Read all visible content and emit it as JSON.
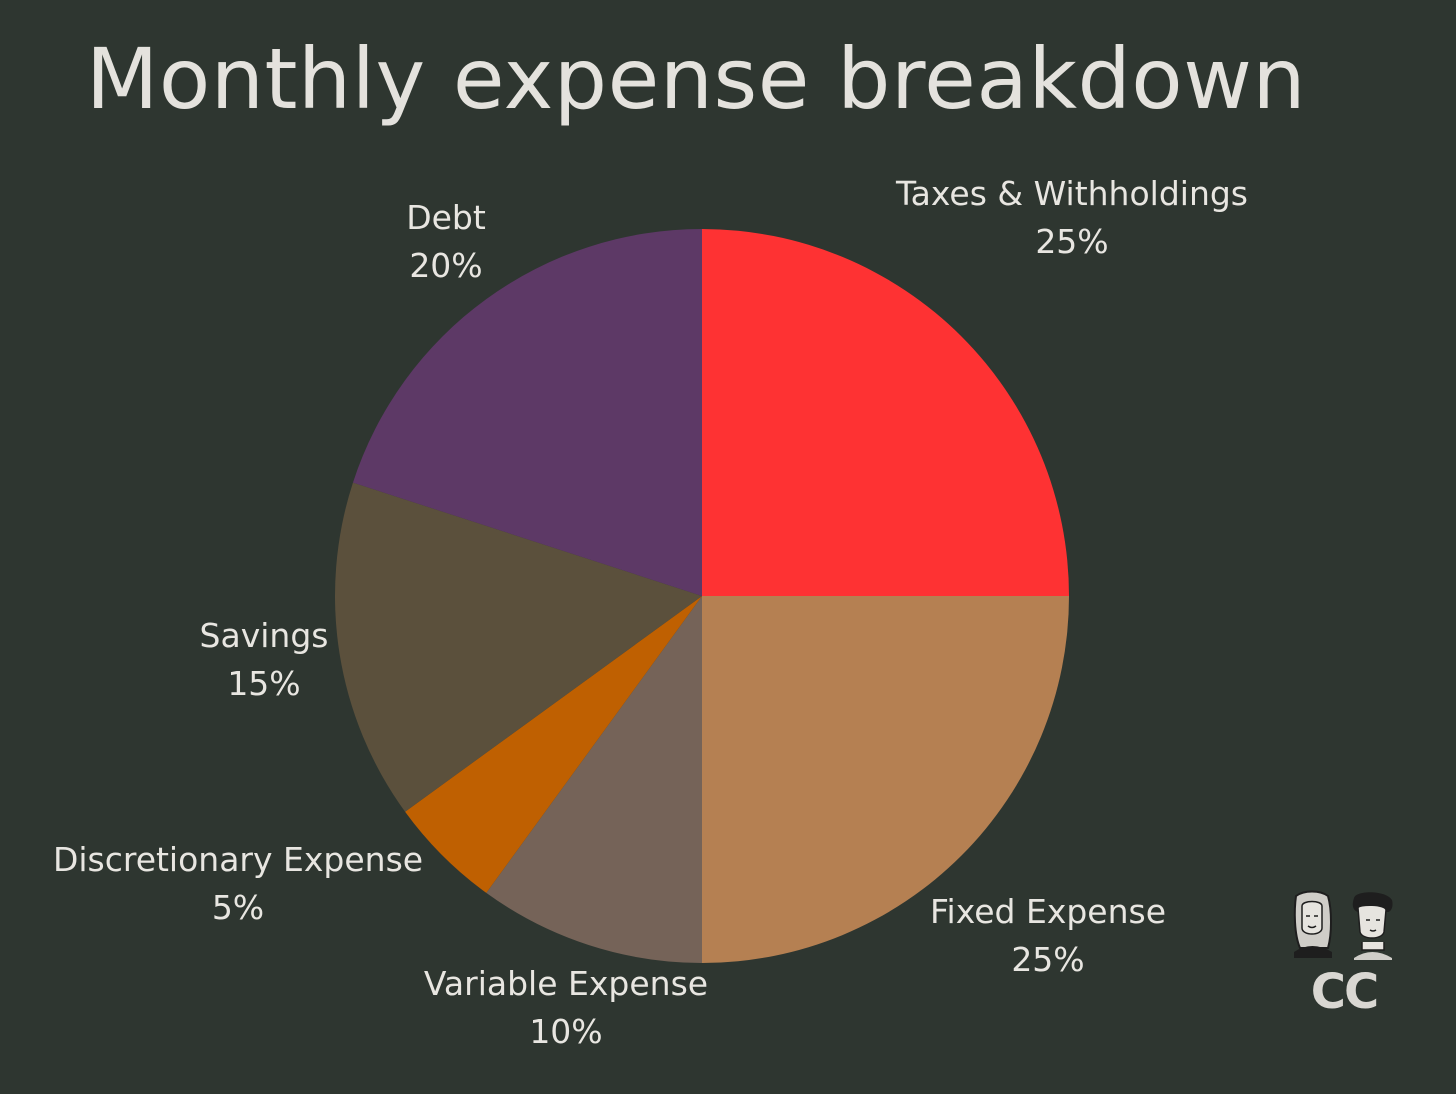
{
  "chart_data": {
    "type": "pie",
    "title": "Monthly expense breakdown",
    "slices": [
      {
        "label": "Taxes & Withholdings",
        "value": 25,
        "value_label": "25%",
        "color": "#fe3233"
      },
      {
        "label": "Fixed Expense",
        "value": 25,
        "value_label": "25%",
        "color": "#b58052"
      },
      {
        "label": "Variable Expense",
        "value": 10,
        "value_label": "10%",
        "color": "#756358"
      },
      {
        "label": "Discretionary Expense",
        "value": 5,
        "value_label": "5%",
        "color": "#bf6001"
      },
      {
        "label": "Savings",
        "value": 15,
        "value_label": "15%",
        "color": "#5b503c"
      },
      {
        "label": "Debt",
        "value": 20,
        "value_label": "20%",
        "color": "#5d3966"
      }
    ],
    "start": "12 o'clock",
    "direction": "clockwise",
    "legend": "none (labels beside slices)"
  },
  "logo": {
    "text": "CC",
    "icon": "two-cartoon-faces-logo"
  },
  "colors": {
    "background": "#2e3630",
    "text": "#e8e6e1"
  }
}
